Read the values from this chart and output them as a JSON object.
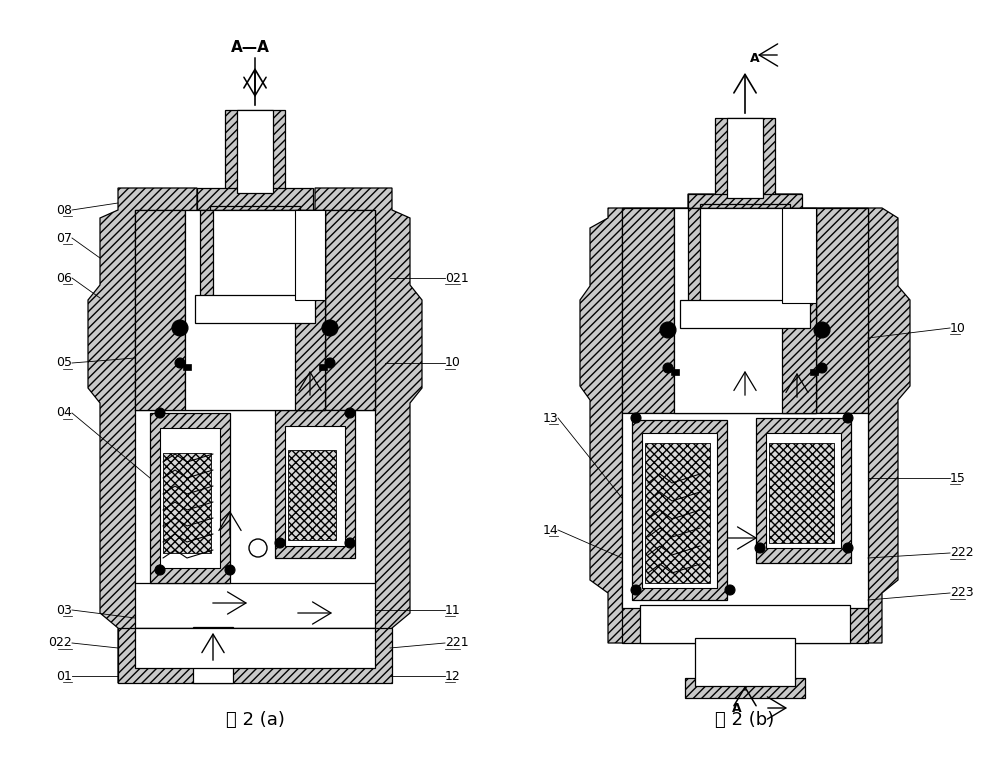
{
  "title_a": "图 2 (a)",
  "title_b": "图 2 (b)",
  "section_label_a": "A—A",
  "bg_color": "#ffffff",
  "line_color": "#000000",
  "fig_width": 10.0,
  "fig_height": 7.58,
  "hatch_45": "////",
  "hatch_cross": "xxxx",
  "hatch_color_main": "#c8c8c8",
  "hatch_color_inner": "#b0b0b0"
}
